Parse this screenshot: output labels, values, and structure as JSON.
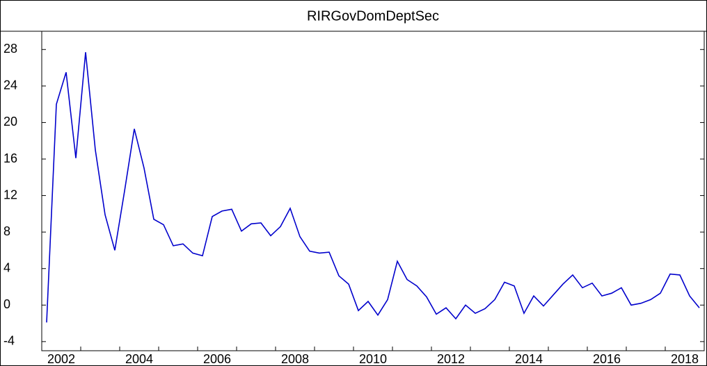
{
  "chart_data": {
    "type": "line",
    "title": "RIRGovDomDeptSec",
    "categories": [
      "2002",
      null,
      null,
      null,
      null,
      null,
      null,
      null,
      "2004",
      null,
      null,
      null,
      null,
      null,
      null,
      null,
      "2006",
      null,
      null,
      null,
      null,
      null,
      null,
      null,
      "2008",
      null,
      null,
      null,
      null,
      null,
      null,
      null,
      "2010",
      null,
      null,
      null,
      null,
      null,
      null,
      null,
      "2012",
      null,
      null,
      null,
      null,
      null,
      null,
      null,
      "2014",
      null,
      null,
      null,
      null,
      null,
      null,
      null,
      "2016",
      null,
      null,
      null,
      null,
      null,
      null,
      null,
      "2018",
      null,
      null,
      null
    ],
    "series": [
      {
        "name": "RIRGovDomDeptSec",
        "color": "#0000cc",
        "values": [
          -1.9,
          22,
          25.5,
          16.1,
          27.7,
          17,
          9.9,
          6,
          12.5,
          19.3,
          15,
          9.4,
          8.8,
          6.5,
          6.7,
          5.7,
          5.4,
          9.7,
          10.3,
          10.5,
          8.1,
          8.9,
          9,
          7.6,
          8.6,
          10.6,
          7.5,
          5.9,
          5.7,
          5.8,
          3.2,
          2.3,
          -0.6,
          0.4,
          -1.1,
          0.6,
          4.8,
          2.8,
          2.1,
          0.9,
          -1,
          -0.3,
          -1.5,
          0,
          -0.9,
          -0.4,
          0.6,
          2.5,
          2.1,
          -0.9,
          1,
          -0.1,
          1.1,
          2.3,
          3.3,
          1.9,
          2.4,
          1,
          1.3,
          1.9,
          0,
          0.2,
          0.6,
          1.3,
          3.4,
          3.3,
          1,
          -0.3
        ]
      }
    ],
    "ylim": [
      -5,
      30
    ],
    "yticks": [
      -4,
      0,
      4,
      8,
      12,
      16,
      20,
      24,
      28
    ]
  }
}
